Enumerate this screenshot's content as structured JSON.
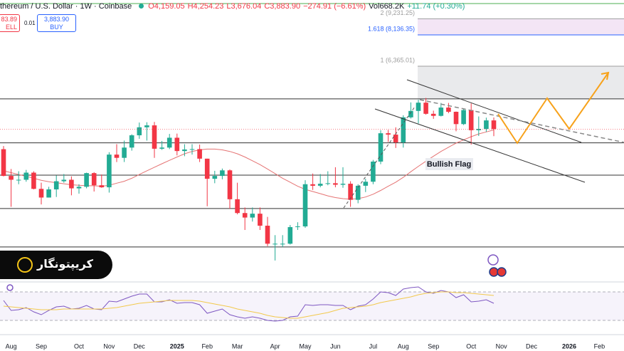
{
  "chart_data": {
    "type": "candlestick",
    "header": {
      "symbol": "thereum / U.S. Dollar · 1W · Coinbase",
      "open": "O4,159.05",
      "high": "H4,254.23",
      "low": "L3,676.04",
      "close": "C3,883.90",
      "change": "−274.91 (−6.61%)",
      "volume": "Vol668.2K",
      "volume_change": "+11.74 (+0.30%)"
    },
    "trade": {
      "sell_price": "83.89",
      "sell": "ELL",
      "spread": "0.01",
      "buy_price": "3,883.90",
      "buy": "BUY"
    },
    "brand": "کریپتونگار",
    "annotation": "Bullish Flag",
    "categories": [
      null,
      "Aug",
      null,
      null,
      null,
      "Sep",
      null,
      null,
      null,
      null,
      "Oct",
      null,
      null,
      null,
      "Nov",
      null,
      null,
      null,
      "Dec",
      null,
      null,
      null,
      null,
      "2025",
      null,
      null,
      null,
      "Feb",
      null,
      null,
      null,
      "Mar",
      null,
      null,
      null,
      null,
      "Apr",
      null,
      null,
      null,
      "May",
      null,
      null,
      null,
      "Jun",
      null,
      null,
      null,
      null,
      "Jul",
      null,
      null,
      null,
      "Aug",
      null,
      null,
      null,
      "Sep",
      null,
      null,
      null,
      null,
      "Oct",
      null,
      null,
      null,
      "Nov",
      null,
      null,
      null,
      "Dec",
      null,
      null,
      null,
      null,
      "2026",
      null,
      null,
      null,
      "Feb",
      null,
      null,
      null
    ],
    "open": [
      3318,
      2690,
      2610,
      2610,
      2760,
      2430,
      2270,
      2420,
      2580,
      2610,
      2440,
      2470,
      2750,
      2500,
      2460,
      3180,
      3100,
      3360,
      3700,
      3940,
      4000,
      3330,
      3360,
      3630,
      3270,
      3310,
      3320,
      3080,
      2630,
      2690,
      2810,
      2240,
      2010,
      1940,
      2000,
      1820,
      1580,
      1580,
      1580,
      1800,
      1810,
      2520,
      2490,
      2530,
      2540,
      2510,
      2530,
      2230,
      2490,
      2570,
      3010,
      3760,
      3720,
      3500,
      4260,
      4480,
      4780,
      4380,
      4310,
      4600,
      4450,
      4040,
      4510,
      3850,
      3890,
      4159.05,
      null,
      null,
      null,
      null,
      null,
      null,
      null,
      null,
      null,
      null,
      null,
      null,
      null,
      null,
      null,
      null,
      null
    ],
    "high": [
      3400,
      2840,
      2790,
      2820,
      2790,
      2550,
      2470,
      2700,
      2730,
      2680,
      2520,
      2760,
      2770,
      2720,
      3240,
      3450,
      3550,
      3730,
      4090,
      4100,
      4110,
      3540,
      3740,
      3750,
      3450,
      3450,
      3440,
      3080,
      2800,
      2850,
      2830,
      2550,
      2100,
      2100,
      2100,
      1950,
      1690,
      1690,
      1830,
      1870,
      2600,
      2740,
      2730,
      2790,
      2880,
      2880,
      2580,
      2520,
      2630,
      3050,
      3850,
      3860,
      3940,
      4330,
      4790,
      4890,
      4960,
      4490,
      4770,
      4770,
      4460,
      4560,
      4750,
      4290,
      4250,
      4254.23,
      null,
      null,
      null,
      null,
      null,
      null,
      null,
      null,
      null,
      null,
      null,
      null,
      null,
      null,
      null,
      null,
      null
    ],
    "low": [
      2680,
      2111,
      2520,
      2570,
      2420,
      2150,
      2270,
      2280,
      2550,
      2310,
      2340,
      2440,
      2380,
      2450,
      2360,
      3000,
      3000,
      3280,
      3600,
      3550,
      3100,
      3300,
      3320,
      3160,
      3140,
      3180,
      3000,
      2120,
      2540,
      2620,
      2080,
      1990,
      1760,
      1880,
      1760,
      1550,
      1385,
      1540,
      1570,
      1760,
      1790,
      2410,
      2460,
      2500,
      2460,
      2450,
      2110,
      2170,
      2370,
      2520,
      2950,
      3510,
      3350,
      3360,
      4220,
      4060,
      4350,
      4210,
      4290,
      4400,
      3820,
      4010,
      3440,
      3680,
      3800,
      3676.04,
      null,
      null,
      null,
      null,
      null,
      null,
      null,
      null,
      null,
      null,
      null,
      null,
      null,
      null,
      null,
      null,
      null
    ],
    "close": [
      2690,
      2610,
      2610,
      2760,
      2430,
      2270,
      2420,
      2580,
      2610,
      2440,
      2470,
      2750,
      2500,
      2460,
      3180,
      3100,
      3360,
      3700,
      3940,
      4000,
      3330,
      3360,
      3630,
      3270,
      3310,
      3320,
      3080,
      2630,
      2690,
      2810,
      2240,
      2010,
      1940,
      2000,
      1820,
      1580,
      1580,
      1580,
      1800,
      1810,
      2520,
      2490,
      2530,
      2540,
      2510,
      2530,
      2230,
      2490,
      2570,
      3010,
      3760,
      3720,
      3500,
      4260,
      4480,
      4780,
      4380,
      4310,
      4600,
      4450,
      4040,
      4510,
      3850,
      3890,
      4159.05,
      3883.9,
      null,
      null,
      null,
      null,
      null,
      null,
      null,
      null,
      null,
      null,
      null,
      null,
      null,
      null,
      null,
      null,
      null
    ],
    "up_color": "#22ab94",
    "down_color": "#f23645",
    "log_scale": true,
    "ylim": [
      1177,
      10700
    ],
    "ma": {
      "color": "#e57373",
      "values": [
        2800,
        2760,
        2720,
        2680,
        2640,
        2600,
        2570,
        2550,
        2530,
        2510,
        2500,
        2490,
        2490,
        2480,
        2500,
        2540,
        2580,
        2640,
        2720,
        2800,
        2880,
        2960,
        3040,
        3120,
        3200,
        3260,
        3300,
        3320,
        3320,
        3300,
        3260,
        3200,
        3120,
        3030,
        2940,
        2840,
        2740,
        2640,
        2560,
        2480,
        2420,
        2380,
        2340,
        2300,
        2270,
        2250,
        2240,
        2250,
        2280,
        2330,
        2400,
        2480,
        2560,
        2660,
        2780,
        2900,
        3020,
        3140,
        3260,
        3370,
        3480,
        3570,
        3660,
        3740,
        3800,
        3860,
        null,
        null,
        null,
        null,
        null,
        null,
        null,
        null,
        null,
        null,
        null,
        null,
        null,
        null,
        null,
        null,
        null
      ]
    },
    "levels": [
      4923,
      3488,
      2707,
      2082,
      1540
    ],
    "level_color": "#333333",
    "fib_levels": [
      {
        "value": 9231.25,
        "label": "2 (9,231.25)",
        "color": "#9e9e9e",
        "fill": "rgba(156,39,176,0.12)"
      },
      {
        "value": 8136.35,
        "label": "1.618 (8,136.35)",
        "color": "#2962ff",
        "fill": "rgba(255,255,255,0)"
      },
      {
        "value": 6365.01,
        "label": "1 (6,365.01)",
        "color": "#9e9e9e",
        "fill": "rgba(120,123,134,0.16)"
      }
    ],
    "rsi": {
      "ylim": [
        20,
        80
      ],
      "bands": [
        30,
        70
      ],
      "series": [
        {
          "color": "#7e57c2",
          "values": [
            58,
            44,
            45,
            48,
            42,
            38,
            44,
            49,
            50,
            46,
            47,
            51,
            46,
            45,
            57,
            56,
            60,
            64,
            67,
            67,
            56,
            56,
            59,
            54,
            55,
            55,
            52,
            40,
            43,
            46,
            38,
            35,
            33,
            35,
            33,
            30,
            29,
            30,
            35,
            36,
            52,
            51,
            52,
            52,
            51,
            51,
            45,
            50,
            52,
            60,
            70,
            69,
            65,
            74,
            76,
            77,
            70,
            68,
            72,
            70,
            62,
            66,
            56,
            57,
            59,
            54,
            null,
            null,
            null,
            null,
            null,
            null,
            null,
            null,
            null,
            null,
            null,
            null,
            null,
            null,
            null,
            null,
            null
          ]
        },
        {
          "color": "#f2c94c",
          "values": [
            50,
            49,
            48,
            47,
            46,
            45,
            45,
            45,
            46,
            46,
            46,
            46,
            46,
            46,
            47,
            48,
            50,
            52,
            54,
            55,
            56,
            57,
            58,
            58,
            58,
            58,
            57,
            55,
            53,
            51,
            49,
            46,
            44,
            42,
            40,
            37,
            35,
            34,
            33,
            33,
            35,
            37,
            39,
            41,
            44,
            47,
            48,
            49,
            50,
            52,
            55,
            57,
            59,
            61,
            63,
            66,
            68,
            69,
            70,
            70,
            69,
            69,
            68,
            67,
            66,
            65,
            null,
            null,
            null,
            null,
            null,
            null,
            null,
            null,
            null,
            null,
            null,
            null,
            null,
            null,
            null,
            null,
            null
          ]
        }
      ]
    }
  }
}
